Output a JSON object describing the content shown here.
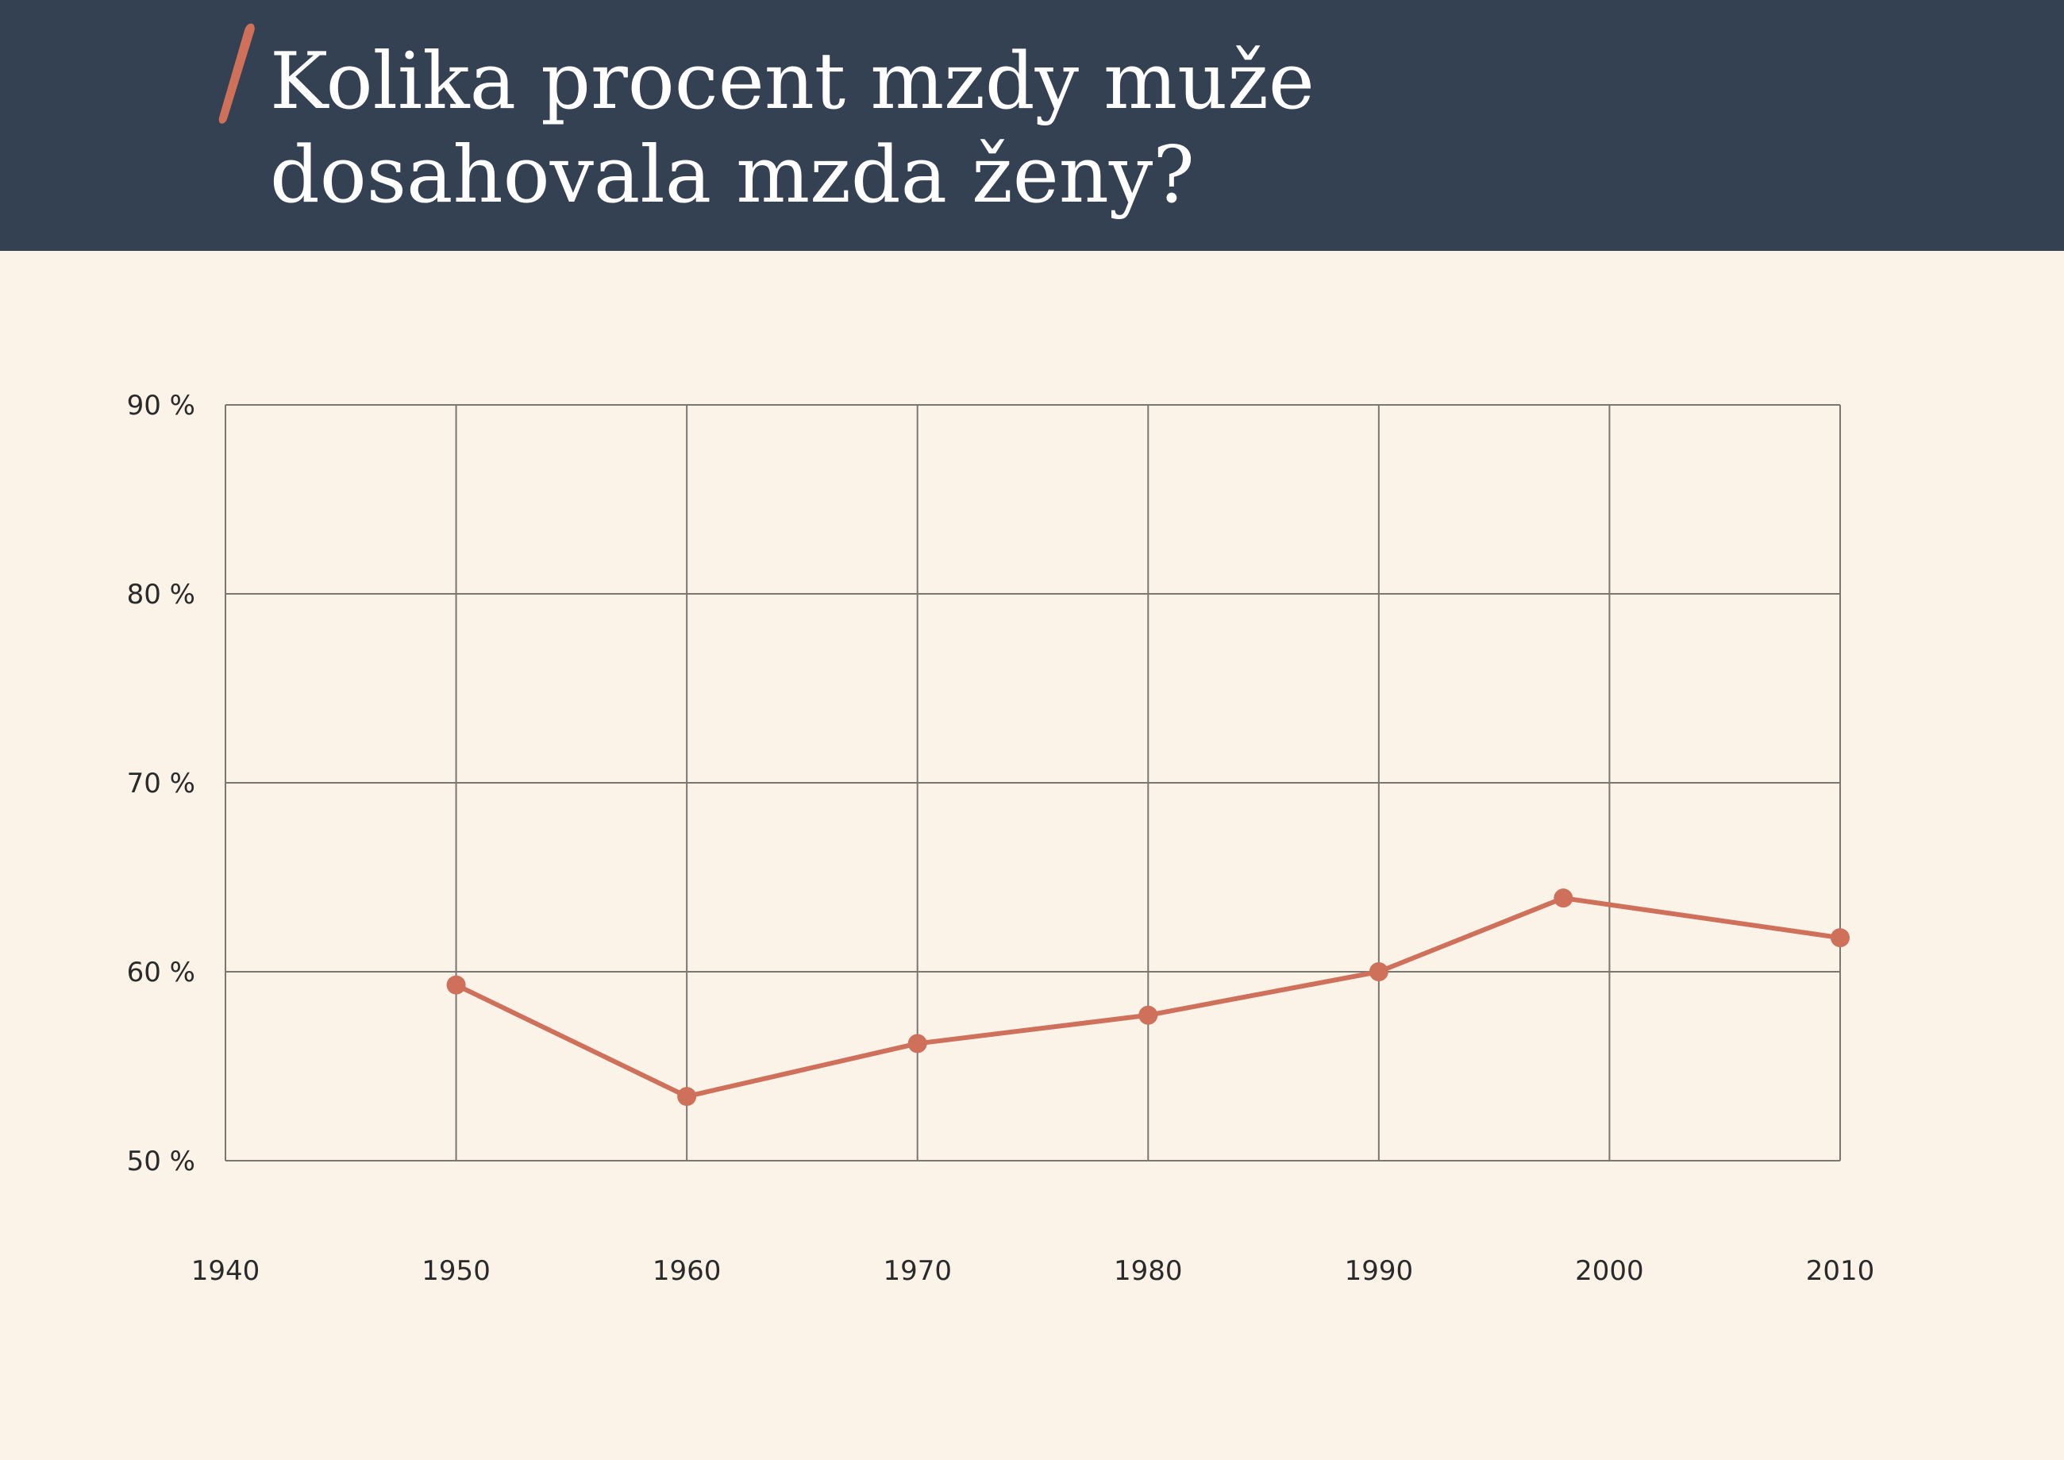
{
  "header": {
    "title_line1": "Kolika procent mzdy muže",
    "title_line2": "dosahovala mzda ženy?"
  },
  "colors": {
    "header_bg": "#344152",
    "page_bg": "#fbf2e8",
    "line": "#cf705b",
    "grid": "#7a7670",
    "tick_text": "#2a2a2a"
  },
  "chart_data": {
    "type": "line",
    "title": "Kolika procent mzdy muže dosahovala mzda ženy?",
    "xlabel": "",
    "ylabel": "",
    "x_ticks": [
      "1940",
      "1950",
      "1960",
      "1970",
      "1980",
      "1990",
      "2000",
      "2010"
    ],
    "y_ticks": [
      "50 %",
      "60 %",
      "70 %",
      "80 %",
      "90 %"
    ],
    "xlim": [
      1940,
      2010
    ],
    "ylim": [
      50,
      90
    ],
    "grid": true,
    "series": [
      {
        "x": [
          1950,
          1960,
          1970,
          1980,
          1990,
          1998,
          2010
        ],
        "y": [
          59.3,
          53.4,
          56.2,
          57.7,
          60.0,
          63.9,
          61.8
        ]
      }
    ]
  }
}
